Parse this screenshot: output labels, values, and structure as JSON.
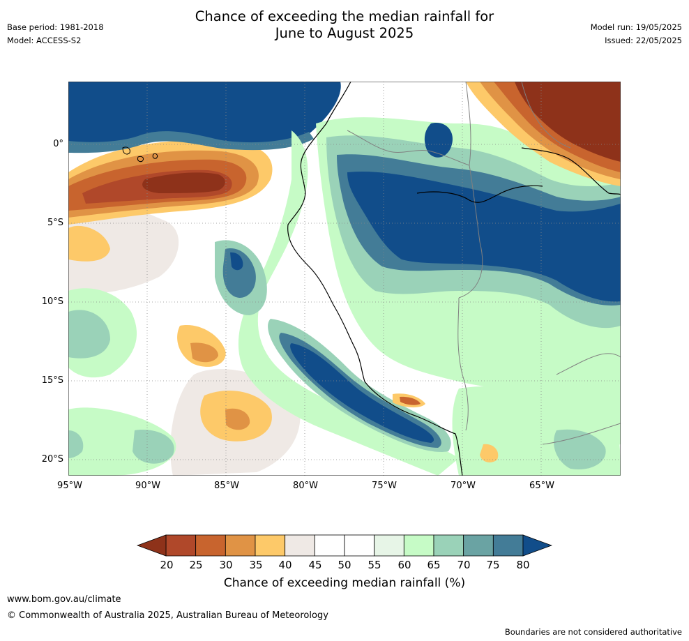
{
  "title": {
    "line1": "Chance of exceeding the median rainfall for",
    "line2": "June to August 2025"
  },
  "meta_left": {
    "base_period": "Base period: 1981-2018",
    "model": "Model: ACCESS-S2"
  },
  "meta_right": {
    "model_run": "Model run: 19/05/2025",
    "issued": "Issued: 22/05/2025"
  },
  "map": {
    "region": {
      "lon_min": -95,
      "lon_max": -60,
      "lat_min": -21,
      "lat_max": 4
    },
    "lat_labels": [
      "0°",
      "5°S",
      "10°S",
      "15°S",
      "20°S"
    ],
    "lon_labels": [
      "95°W",
      "90°W",
      "85°W",
      "80°W",
      "75°W",
      "70°W",
      "65°W"
    ],
    "colors": {
      "c20": "#8e321a",
      "c25": "#b0482a",
      "c30": "#c8642e",
      "c35": "#e09345",
      "c40": "#fdc969",
      "c45": "#efe9e5",
      "c50": "#ffffff",
      "c60": "#e7f5e7",
      "c65": "#c6fbc6",
      "c70": "#9ad2b8",
      "c75": "#6aa3a3",
      "c80": "#437c97",
      "c85": "#114d8a"
    },
    "coast_color": "#000000",
    "border_color": "#808080",
    "grid": "dotted"
  },
  "legend": {
    "label": "Chance of exceeding median rainfall (%)",
    "ticks": [
      "20",
      "25",
      "30",
      "35",
      "40",
      "45",
      "50",
      "55",
      "60",
      "65",
      "70",
      "75",
      "80"
    ],
    "colors": [
      "#b0482a",
      "#c8642e",
      "#e09345",
      "#fdc969",
      "#efe9e5",
      "#ffffff",
      "#ffffff",
      "#e7f5e7",
      "#c6fbc6",
      "#9ad2b8",
      "#6aa3a3",
      "#437c97"
    ],
    "under_color": "#8e321a",
    "over_color": "#114d8a"
  },
  "footer": {
    "url": "www.bom.gov.au/climate",
    "copyright": "© Commonwealth of Australia 2025, Australian Bureau of Meteorology",
    "note": "Boundaries are not considered authoritative"
  }
}
